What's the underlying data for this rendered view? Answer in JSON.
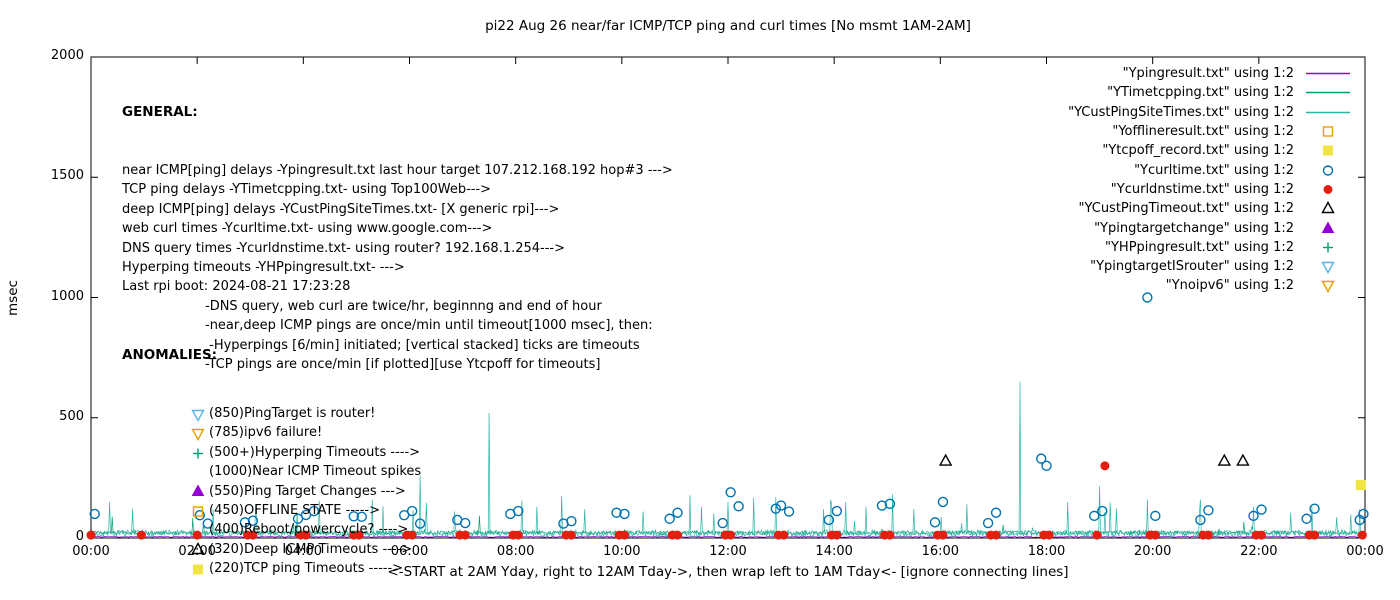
{
  "chart_data": {
    "type": "line+scatter",
    "title": "pi22 Aug 26  near/far ICMP/TCP ping and curl times [No msmt 1AM-2AM]",
    "xlabel": "<-START at 2AM Yday, right to 12AM Tday->, then wrap left to 1AM Tday<- [ignore connecting lines]",
    "ylabel": "msec",
    "xlim": [
      0,
      24
    ],
    "ylim": [
      0,
      2000
    ],
    "grid": false,
    "legend_position": "top-right",
    "xtick_hours": [
      0,
      2,
      4,
      6,
      8,
      10,
      12,
      14,
      16,
      18,
      20,
      22,
      24
    ],
    "xtick_labels": [
      "00:00",
      "02:00",
      "04:00",
      "06:00",
      "08:00",
      "10:00",
      "12:00",
      "14:00",
      "16:00",
      "18:00",
      "20:00",
      "22:00",
      "00:00"
    ],
    "ytick_values": [
      0,
      500,
      1000,
      1500,
      2000
    ],
    "ytick_labels": [
      "0",
      "500",
      "1000",
      "1500",
      "2000"
    ],
    "series": [
      {
        "name": "Ypingresult.txt",
        "style": "line",
        "color": "#9400d3",
        "gen": {
          "seed": 11,
          "points_per_hour": 30,
          "base": 3,
          "jitter": 5,
          "spike_prob": 0,
          "spike_max": 0
        },
        "spikes": []
      },
      {
        "name": "YTimetcpping.txt",
        "style": "line",
        "color": "#009e73",
        "gen": {
          "seed": 5,
          "points_per_hour": 60,
          "base": 14,
          "jitter": 16,
          "spike_prob": 0.012,
          "spike_max": 70
        },
        "spikes": []
      },
      {
        "name": "YCustPingSiteTimes.txt",
        "style": "line",
        "color": "#2ab5a5",
        "gen": {
          "seed": 7,
          "points_per_hour": 60,
          "base": 5,
          "jitter": 28,
          "spike_prob": 0.03,
          "spike_max": 160
        },
        "spikes": [
          [
            0.35,
            150
          ],
          [
            2.3,
            120
          ],
          [
            3.1,
            140
          ],
          [
            4.3,
            155
          ],
          [
            5.3,
            160
          ],
          [
            6.2,
            260
          ],
          [
            7.5,
            520
          ],
          [
            8.4,
            130
          ],
          [
            9.3,
            120
          ],
          [
            10.4,
            110
          ],
          [
            11.5,
            130
          ],
          [
            12.0,
            150
          ],
          [
            12.9,
            170
          ],
          [
            13.8,
            120
          ],
          [
            14.6,
            130
          ],
          [
            15.5,
            120
          ],
          [
            16.5,
            140
          ],
          [
            17.5,
            650
          ],
          [
            18.4,
            150
          ],
          [
            19.0,
            215
          ],
          [
            19.9,
            160
          ],
          [
            20.9,
            160
          ],
          [
            21.9,
            130
          ],
          [
            23.0,
            130
          ],
          [
            23.9,
            120
          ]
        ]
      },
      {
        "name": "Yofflineresult.txt",
        "style": "square-open",
        "color": "#e69f00",
        "points": []
      },
      {
        "name": "Ytcpoff_record.txt",
        "style": "square-filled",
        "color": "#f0e442",
        "points": [
          [
            23.92,
            220
          ]
        ]
      },
      {
        "name": "Ycurltime.txt",
        "style": "circle-open",
        "color": "#0072b2",
        "points": [
          [
            0.07,
            100
          ],
          [
            2.05,
            95
          ],
          [
            2.2,
            60
          ],
          [
            2.9,
            65
          ],
          [
            3.05,
            72
          ],
          [
            3.9,
            80
          ],
          [
            4.05,
            96
          ],
          [
            4.2,
            112
          ],
          [
            4.95,
            90
          ],
          [
            5.1,
            88
          ],
          [
            5.9,
            95
          ],
          [
            6.05,
            112
          ],
          [
            6.2,
            60
          ],
          [
            6.9,
            75
          ],
          [
            7.05,
            62
          ],
          [
            7.9,
            100
          ],
          [
            8.05,
            112
          ],
          [
            8.9,
            60
          ],
          [
            9.05,
            70
          ],
          [
            9.9,
            105
          ],
          [
            10.05,
            100
          ],
          [
            10.9,
            80
          ],
          [
            11.05,
            105
          ],
          [
            11.9,
            62
          ],
          [
            12.05,
            190
          ],
          [
            12.2,
            132
          ],
          [
            12.9,
            122
          ],
          [
            13.0,
            135
          ],
          [
            13.15,
            110
          ],
          [
            13.9,
            75
          ],
          [
            14.05,
            112
          ],
          [
            14.9,
            135
          ],
          [
            15.05,
            142
          ],
          [
            15.9,
            65
          ],
          [
            16.05,
            150
          ],
          [
            16.9,
            62
          ],
          [
            17.05,
            105
          ],
          [
            17.9,
            330
          ],
          [
            18.0,
            300
          ],
          [
            18.9,
            92
          ],
          [
            19.05,
            112
          ],
          [
            19.9,
            1000
          ],
          [
            20.05,
            92
          ],
          [
            20.9,
            75
          ],
          [
            21.05,
            115
          ],
          [
            21.9,
            92
          ],
          [
            22.05,
            118
          ],
          [
            22.9,
            80
          ],
          [
            23.05,
            122
          ],
          [
            23.9,
            75
          ],
          [
            23.97,
            100
          ]
        ]
      },
      {
        "name": "Ycurldnstime.txt",
        "style": "circle-filled",
        "color": "#e51e10",
        "points": [
          [
            0,
            12
          ],
          [
            0.95,
            12
          ],
          [
            2,
            12
          ],
          [
            2.95,
            12
          ],
          [
            3.05,
            12
          ],
          [
            3.95,
            12
          ],
          [
            4.05,
            12
          ],
          [
            4.95,
            12
          ],
          [
            5.05,
            12
          ],
          [
            5.95,
            12
          ],
          [
            6.05,
            12
          ],
          [
            6.95,
            12
          ],
          [
            7.05,
            12
          ],
          [
            7.95,
            12
          ],
          [
            8.05,
            12
          ],
          [
            8.95,
            12
          ],
          [
            9.05,
            12
          ],
          [
            9.95,
            12
          ],
          [
            10.05,
            12
          ],
          [
            10.95,
            12
          ],
          [
            11.05,
            12
          ],
          [
            11.95,
            12
          ],
          [
            12.05,
            12
          ],
          [
            12.95,
            12
          ],
          [
            13.05,
            12
          ],
          [
            13.95,
            12
          ],
          [
            14.05,
            12
          ],
          [
            14.95,
            12
          ],
          [
            15.05,
            12
          ],
          [
            15.95,
            12
          ],
          [
            16.05,
            12
          ],
          [
            16.95,
            12
          ],
          [
            17.05,
            12
          ],
          [
            17.95,
            12
          ],
          [
            18.05,
            12
          ],
          [
            18.95,
            12
          ],
          [
            19.1,
            300
          ],
          [
            19.95,
            12
          ],
          [
            20.05,
            12
          ],
          [
            20.95,
            12
          ],
          [
            21.05,
            12
          ],
          [
            21.95,
            12
          ],
          [
            22.05,
            12
          ],
          [
            22.95,
            12
          ],
          [
            23.05,
            12
          ],
          [
            23.95,
            12
          ]
        ]
      },
      {
        "name": "YCustPingTimeout.txt",
        "style": "triangle-open",
        "color": "#000000",
        "points": [
          [
            16.1,
            320
          ],
          [
            21.35,
            320
          ],
          [
            21.7,
            320
          ]
        ]
      },
      {
        "name": "Ypingtargetchange",
        "style": "triangle-filled",
        "color": "#9400d3",
        "points": []
      },
      {
        "name": "YHPpingresult.txt",
        "style": "plus",
        "color": "#009e73",
        "points": []
      },
      {
        "name": "YpingtargetISrouter",
        "style": "triangle-down-open",
        "color": "#56b4e9",
        "points": []
      },
      {
        "name": "Ynoipv6",
        "style": "triangle-down-open",
        "color": "#e69f00",
        "points": []
      }
    ]
  },
  "legend": {
    "entries": [
      {
        "label": "\"Ypingresult.txt\" using 1:2",
        "sample": "line",
        "color": "#9400d3"
      },
      {
        "label": "\"YTimetcpping.txt\" using 1:2",
        "sample": "line",
        "color": "#009e73"
      },
      {
        "label": "\"YCustPingSiteTimes.txt\" using 1:2",
        "sample": "line",
        "color": "#2ab5a5"
      },
      {
        "label": "\"Yofflineresult.txt\" using 1:2",
        "sample": "square-open",
        "color": "#e69f00"
      },
      {
        "label": "\"Ytcpoff_record.txt\" using 1:2",
        "sample": "square-filled",
        "color": "#f0e442"
      },
      {
        "label": "\"Ycurltime.txt\" using 1:2",
        "sample": "circle-open",
        "color": "#0072b2"
      },
      {
        "label": "\"Ycurldnstime.txt\" using 1:2",
        "sample": "circle-filled",
        "color": "#e51e10"
      },
      {
        "label": "\"YCustPingTimeout.txt\" using 1:2",
        "sample": "triangle-open",
        "color": "#000000"
      },
      {
        "label": "\"Ypingtargetchange\" using 1:2",
        "sample": "triangle-filled",
        "color": "#9400d3"
      },
      {
        "label": "\"YHPpingresult.txt\" using 1:2",
        "sample": "plus",
        "color": "#009e73"
      },
      {
        "label": "\"YpingtargetISrouter\" using 1:2",
        "sample": "triangle-down-open",
        "color": "#56b4e9"
      },
      {
        "label": "\"Ynoipv6\" using 1:2",
        "sample": "triangle-down-open",
        "color": "#e69f00"
      }
    ]
  },
  "annotations": {
    "general": {
      "heading": "GENERAL:",
      "lines": [
        {
          "text": "near ICMP[ping] delays -Ypingresult.txt last hour target 107.212.168.192 hop#3 --->",
          "indent": 0
        },
        {
          "text": "TCP ping delays -YTimetcpping.txt- using Top100Web--->",
          "indent": 0
        },
        {
          "text": "deep ICMP[ping] delays -YCustPingSiteTimes.txt- [X generic rpi]--->",
          "indent": 0
        },
        {
          "text": "web curl times -Ycurltime.txt- using www.google.com--->",
          "indent": 0
        },
        {
          "text": "DNS query times -Ycurldnstime.txt- using router? 192.168.1.254--->",
          "indent": 0
        },
        {
          "text": "Hyperping timeouts -YHPpingresult.txt- --->",
          "indent": 0
        },
        {
          "text": "Last rpi boot: 2024-08-21 17:23:28",
          "indent": 0
        },
        {
          "text": "-DNS query, web curl are twice/hr, beginnng and end of hour",
          "indent": 1
        },
        {
          "text": "-near,deep ICMP pings are once/min until timeout[1000 msec], then:",
          "indent": 1
        },
        {
          "text": " -Hyperpings [6/min] initiated; [vertical stacked] ticks are timeouts",
          "indent": 1
        },
        {
          "text": "-TCP pings are once/min [if plotted][use Ytcpoff for timeouts]",
          "indent": 1
        }
      ]
    },
    "anomalies": {
      "heading": "ANOMALIES:",
      "items": [
        {
          "marker": "triangle-down-open",
          "color": "#56b4e9",
          "text": "(850)PingTarget is router!"
        },
        {
          "marker": "triangle-down-open",
          "color": "#e69f00",
          "text": "(785)ipv6 failure!"
        },
        {
          "marker": "plus",
          "color": "#009e73",
          "text": "(500+)Hyperping Timeouts ---->"
        },
        {
          "marker": null,
          "color": null,
          "text": "(1000)Near ICMP Timeout spikes"
        },
        {
          "marker": "triangle-filled",
          "color": "#9400d3",
          "text": "(550)Ping Target Changes --->"
        },
        {
          "marker": "square-open",
          "color": "#e69f00",
          "text": "(450)OFFLINE STATE ----->"
        },
        {
          "marker": null,
          "color": null,
          "text": "(400)Reboot/powercycle? ---->"
        },
        {
          "marker": "triangle-open",
          "color": "#000000",
          "text": "(320)Deep ICMP Timeouts ---->"
        },
        {
          "marker": "square-filled",
          "color": "#f0e442",
          "text": "(220)TCP ping Timeouts ----->"
        }
      ]
    }
  }
}
